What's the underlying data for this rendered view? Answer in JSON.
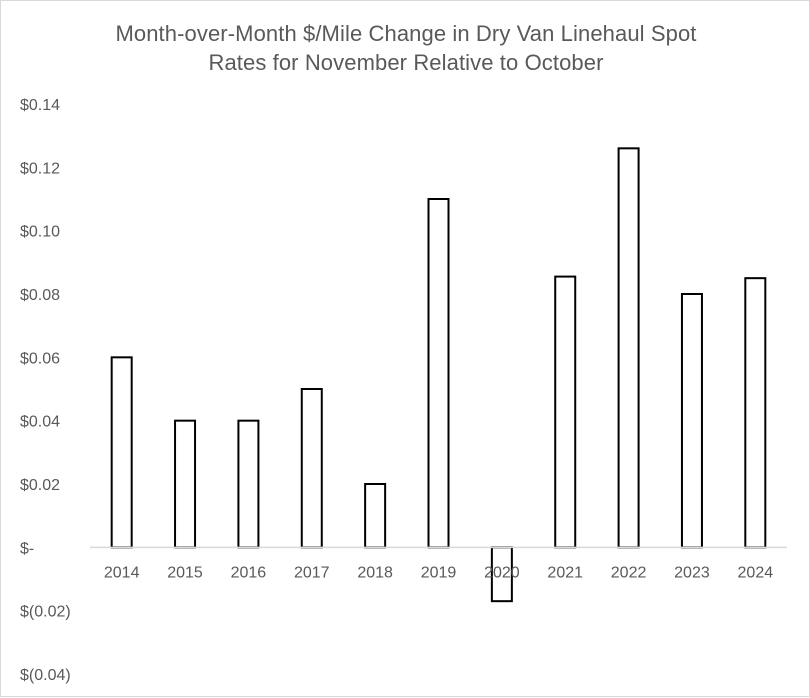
{
  "chart_data": {
    "type": "bar",
    "title": "Month-over-Month $/Mile Change in Dry Van Linehaul Spot Rates for November Relative to October",
    "title_lines": [
      "Month-over-Month $/Mile Change in Dry Van Linehaul Spot",
      "Rates for November Relative to October"
    ],
    "xlabel": "",
    "ylabel": "",
    "categories": [
      "2014",
      "2015",
      "2016",
      "2017",
      "2018",
      "2019",
      "2020",
      "2021",
      "2022",
      "2023",
      "2024"
    ],
    "series": [
      {
        "name": "$/Mile Change",
        "values": [
          0.06,
          0.04,
          0.04,
          0.05,
          0.02,
          0.11,
          -0.017,
          0.0855,
          0.126,
          0.08,
          0.085
        ]
      }
    ],
    "ylim": [
      -0.04,
      0.14
    ],
    "yticks": [
      0.14,
      0.12,
      0.1,
      0.08,
      0.06,
      0.04,
      0.02,
      0,
      -0.02,
      -0.04
    ],
    "ytick_labels": [
      "$0.14",
      "$0.12",
      "$0.10",
      "$0.08",
      "$0.06",
      "$0.04",
      "$0.02",
      "$-",
      "$(0.02)",
      "$(0.04)"
    ],
    "grid": false,
    "legend": "none",
    "colors": {
      "bar_fill": "#ffffff",
      "bar_stroke": "#000000",
      "axis": "#d9d9d9",
      "text": "#595959"
    }
  }
}
